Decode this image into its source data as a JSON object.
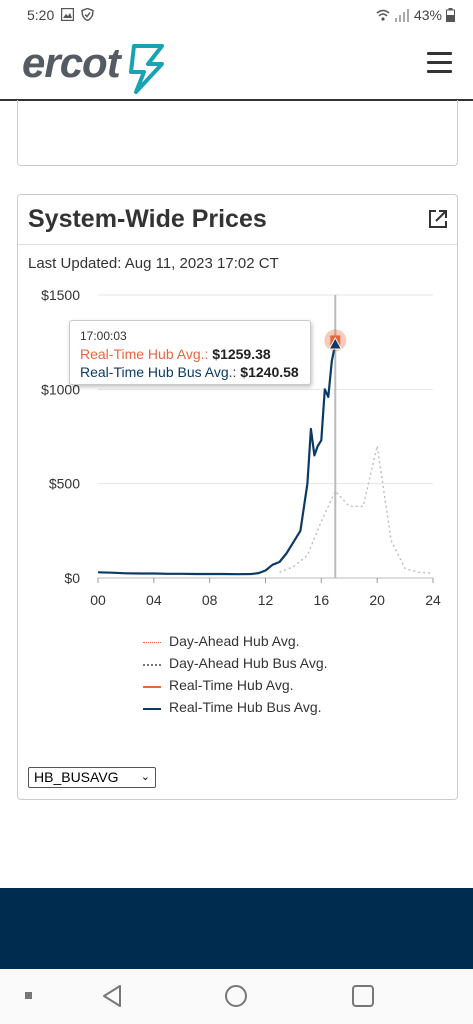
{
  "status_bar": {
    "time": "5:20",
    "battery": "43%"
  },
  "header": {
    "logo_text": "ercot"
  },
  "card": {
    "title": "System-Wide Prices",
    "last_updated": "Last Updated: Aug 11, 2023 17:02 CT"
  },
  "tooltip": {
    "time": "17:00:03",
    "row1_label": "Real-Time Hub Avg.",
    "row1_value": "$1259.38",
    "row2_label": "Real-Time Hub Bus Avg.",
    "row2_value": "$1240.58"
  },
  "select": {
    "value": "HB_BUSAVG"
  },
  "colors": {
    "real_time": "#e8663d",
    "real_time_bus": "#0c3a66",
    "day_ahead": "#e8663d",
    "day_ahead_bus": "#999999",
    "footer": "#002d4f"
  },
  "chart_data": {
    "type": "line",
    "y_ticks": [
      "$1500",
      "$1000",
      "$500",
      "$0"
    ],
    "x_ticks": [
      "00",
      "04",
      "08",
      "12",
      "16",
      "20",
      "24"
    ],
    "ylim": [
      0,
      1500
    ],
    "xlim": [
      0,
      24
    ],
    "hover_x": 17.0,
    "legend": [
      "Day-Ahead Hub Avg.",
      "Day-Ahead Hub Bus Avg.",
      "Real-Time Hub Avg.",
      "Real-Time Hub Bus Avg."
    ],
    "series": [
      {
        "name": "Day-Ahead Hub Bus Avg.",
        "style": "dotted",
        "x": [
          13,
          14,
          15,
          16,
          17,
          18,
          19,
          20,
          21,
          22,
          23,
          24
        ],
        "y": [
          30,
          60,
          120,
          300,
          460,
          380,
          380,
          700,
          200,
          50,
          30,
          25
        ]
      },
      {
        "name": "Real-Time Hub Bus Avg.",
        "style": "solid",
        "x": [
          0,
          1,
          2,
          3,
          4,
          5,
          6,
          7,
          8,
          9,
          10,
          11,
          11.5,
          12,
          12.5,
          13,
          13.5,
          14,
          14.5,
          15,
          15.25,
          15.5,
          15.75,
          16,
          16.25,
          16.5,
          16.75,
          17
        ],
        "y": [
          30,
          28,
          25,
          24,
          24,
          22,
          22,
          21,
          21,
          21,
          20,
          21,
          26,
          40,
          70,
          85,
          130,
          190,
          250,
          500,
          790,
          650,
          700,
          730,
          1000,
          960,
          1150,
          1241
        ]
      }
    ],
    "highlight_points": [
      {
        "name": "Real-Time Hub Avg.",
        "x": 17,
        "y": 1259.38
      },
      {
        "name": "Real-Time Hub Bus Avg.",
        "x": 17,
        "y": 1240.58
      }
    ]
  }
}
